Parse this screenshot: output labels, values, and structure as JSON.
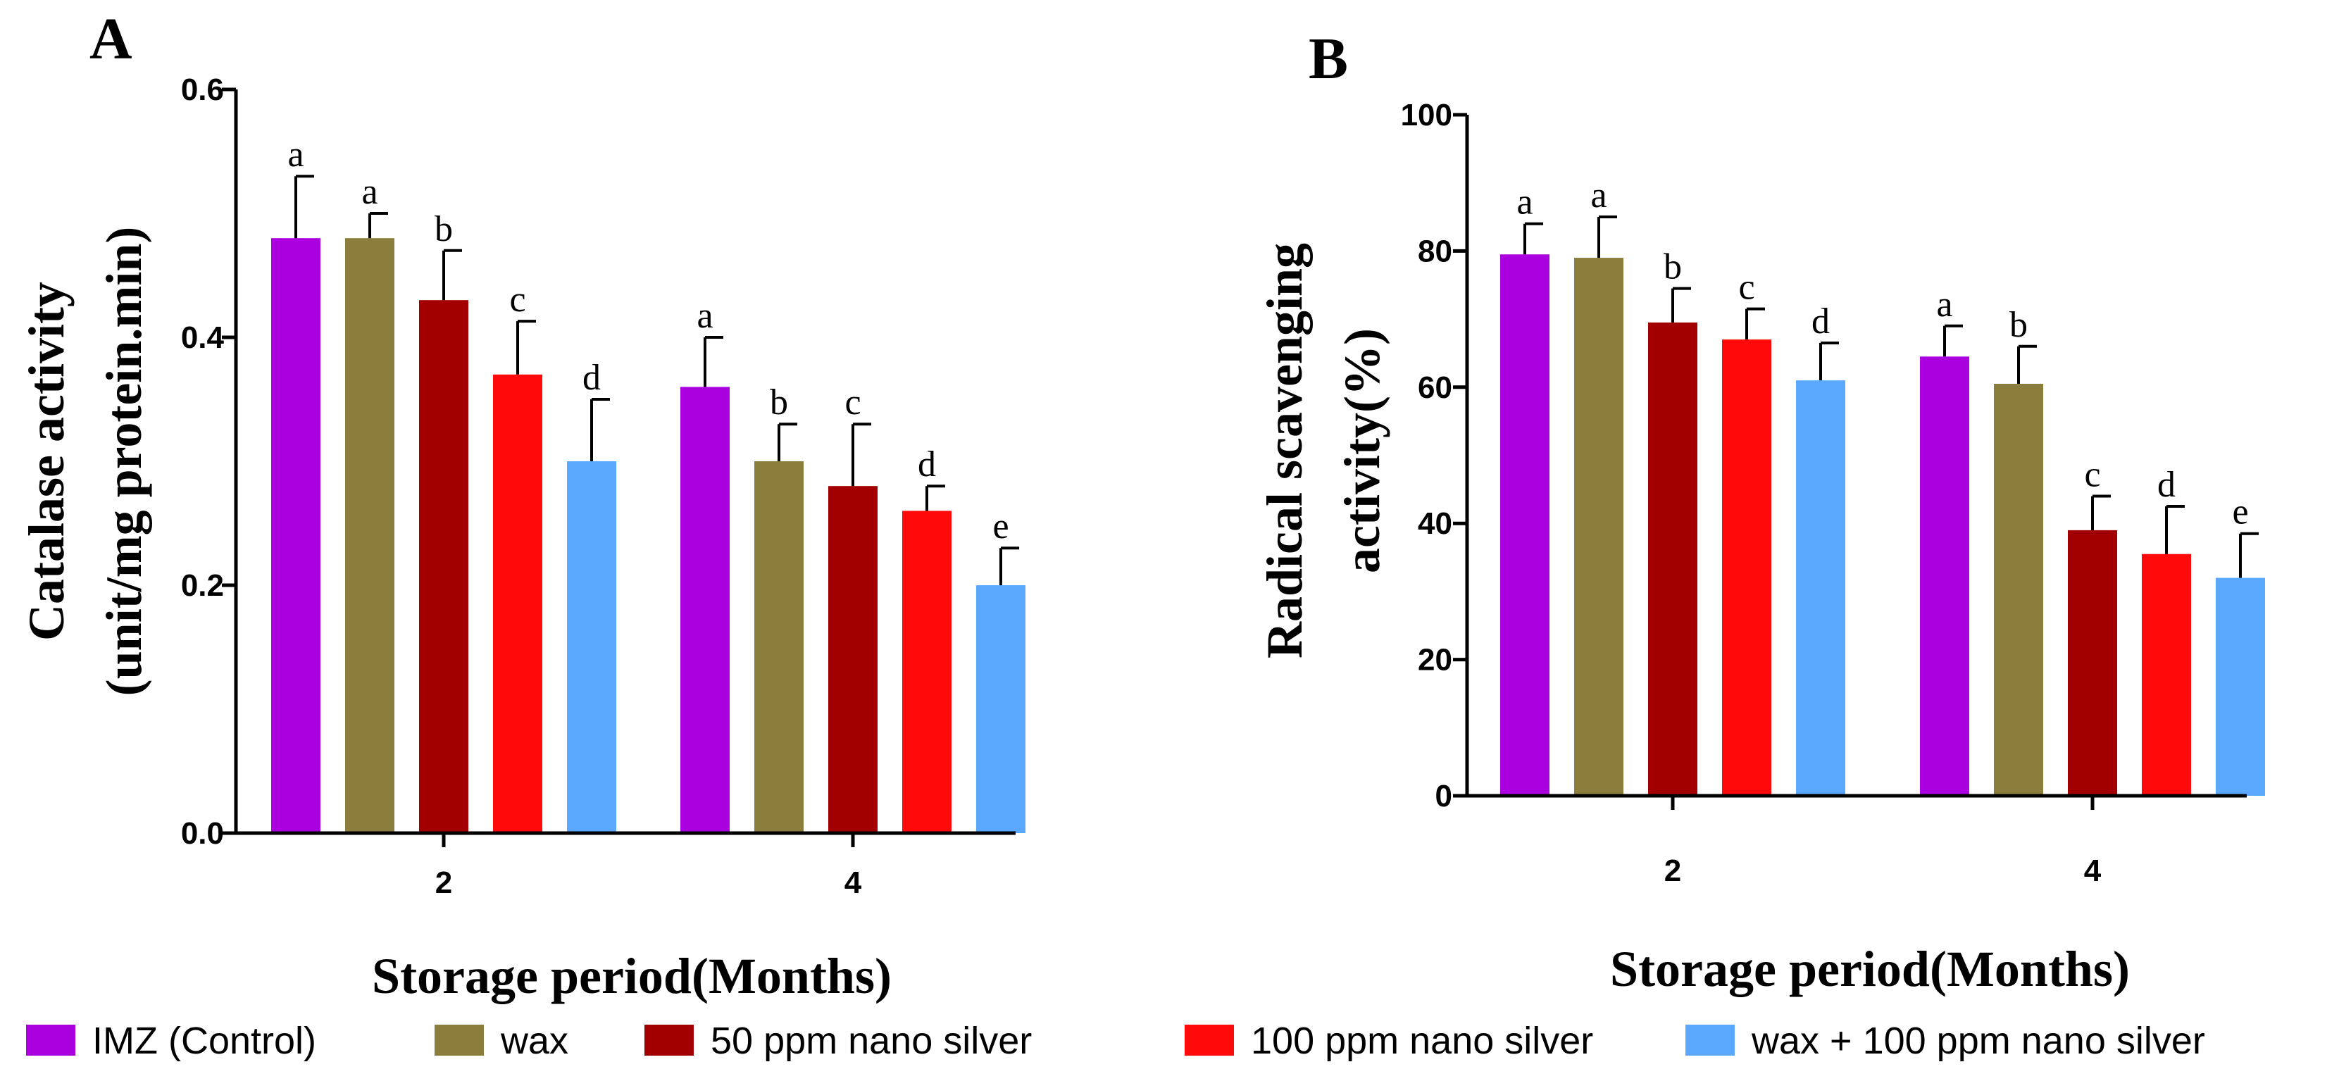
{
  "legend": [
    {
      "label": "IMZ (Control)",
      "color": "#aa00e0"
    },
    {
      "label": "wax",
      "color": "#8b7d3c"
    },
    {
      "label": "50 ppm nano silver",
      "color": "#a20000"
    },
    {
      "label": "100 ppm nano silver",
      "color": "#ff0a0a"
    },
    {
      "label": "wax + 100 ppm nano silver",
      "color": "#5aa8ff"
    }
  ],
  "chart_data": [
    {
      "type": "bar",
      "panel": "A",
      "categories": [
        "2",
        "4"
      ],
      "xlabel": "Storage period(Months)",
      "ylabel_lines": [
        "Catalase activity",
        "(unit/mg protein.min)"
      ],
      "ylim": [
        0,
        0.6
      ],
      "yticks": [
        "0.0",
        "0.2",
        "0.4",
        "0.6"
      ],
      "ytick_values": [
        0,
        0.2,
        0.4,
        0.6
      ],
      "series": [
        {
          "name": "IMZ (Control)",
          "values": [
            0.48,
            0.36
          ],
          "errors": [
            0.05,
            0.04
          ],
          "letters": [
            "a",
            "a"
          ]
        },
        {
          "name": "wax",
          "values": [
            0.48,
            0.3
          ],
          "errors": [
            0.02,
            0.03
          ],
          "letters": [
            "a",
            "b"
          ]
        },
        {
          "name": "50 ppm nano silver",
          "values": [
            0.43,
            0.28
          ],
          "errors": [
            0.04,
            0.05
          ],
          "letters": [
            "b",
            "c"
          ]
        },
        {
          "name": "100 ppm nano silver",
          "values": [
            0.37,
            0.26
          ],
          "errors": [
            0.043,
            0.02
          ],
          "letters": [
            "c",
            "d"
          ]
        },
        {
          "name": "wax + 100 ppm nano silver",
          "values": [
            0.3,
            0.2
          ],
          "errors": [
            0.05,
            0.03
          ],
          "letters": [
            "d",
            "e"
          ]
        }
      ]
    },
    {
      "type": "bar",
      "panel": "B",
      "categories": [
        "2",
        "4"
      ],
      "xlabel": "Storage period(Months)",
      "ylabel_lines": [
        "Radical scavenging",
        "activity(%)"
      ],
      "ylim": [
        0,
        100
      ],
      "yticks": [
        "0",
        "20",
        "40",
        "60",
        "80",
        "100"
      ],
      "ytick_values": [
        0,
        20,
        40,
        60,
        80,
        100
      ],
      "series": [
        {
          "name": "IMZ (Control)",
          "values": [
            79.5,
            64.5
          ],
          "errors": [
            4.5,
            4.5
          ],
          "letters": [
            "a",
            "a"
          ]
        },
        {
          "name": "wax",
          "values": [
            79.0,
            60.5
          ],
          "errors": [
            6.0,
            5.5
          ],
          "letters": [
            "a",
            "b"
          ]
        },
        {
          "name": "50 ppm nano silver",
          "values": [
            69.5,
            39.0
          ],
          "errors": [
            5.0,
            5.0
          ],
          "letters": [
            "b",
            "c"
          ]
        },
        {
          "name": "100 ppm nano silver",
          "values": [
            67.0,
            35.5
          ],
          "errors": [
            4.5,
            7.0
          ],
          "letters": [
            "c",
            "d"
          ]
        },
        {
          "name": "wax + 100 ppm nano silver",
          "values": [
            61.0,
            32.0
          ],
          "errors": [
            5.5,
            6.5
          ],
          "letters": [
            "d",
            "e"
          ]
        }
      ]
    }
  ]
}
